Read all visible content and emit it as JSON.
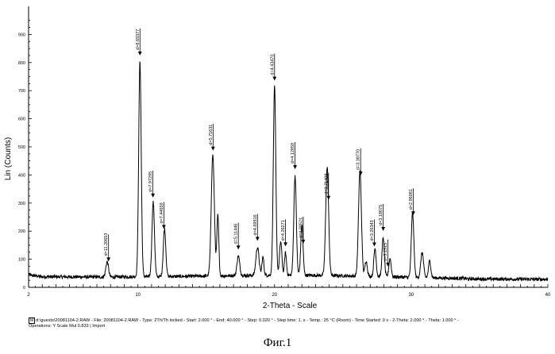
{
  "chart_data": {
    "type": "line",
    "xlabel": "2-Theta - Scale",
    "ylabel": "Lin (Counts)",
    "xlim": [
      2,
      40
    ],
    "ylim": [
      0,
      1000
    ],
    "xticks": [
      2,
      10,
      20,
      30,
      40
    ],
    "yticks": [
      0,
      100,
      200,
      300,
      400,
      500,
      600,
      700,
      800,
      900
    ],
    "grid": false,
    "baseline": 38,
    "peaks": [
      {
        "x": 7.75,
        "y": 55,
        "w": 0.14
      },
      {
        "x": 10.15,
        "y": 765,
        "w": 0.13
      },
      {
        "x": 11.12,
        "y": 265,
        "w": 0.13
      },
      {
        "x": 11.95,
        "y": 170,
        "w": 0.13
      },
      {
        "x": 15.48,
        "y": 430,
        "w": 0.16
      },
      {
        "x": 15.85,
        "y": 215,
        "w": 0.1
      },
      {
        "x": 17.35,
        "y": 70,
        "w": 0.14
      },
      {
        "x": 18.75,
        "y": 100,
        "w": 0.16
      },
      {
        "x": 19.15,
        "y": 65,
        "w": 0.1
      },
      {
        "x": 20.0,
        "y": 670,
        "w": 0.13
      },
      {
        "x": 20.45,
        "y": 120,
        "w": 0.12
      },
      {
        "x": 20.8,
        "y": 80,
        "w": 0.1
      },
      {
        "x": 21.5,
        "y": 355,
        "w": 0.13
      },
      {
        "x": 22.0,
        "y": 180,
        "w": 0.12
      },
      {
        "x": 23.85,
        "y": 385,
        "w": 0.15
      },
      {
        "x": 26.25,
        "y": 375,
        "w": 0.15
      },
      {
        "x": 26.7,
        "y": 55,
        "w": 0.12
      },
      {
        "x": 27.35,
        "y": 100,
        "w": 0.12
      },
      {
        "x": 27.95,
        "y": 140,
        "w": 0.12
      },
      {
        "x": 28.45,
        "y": 65,
        "w": 0.12
      },
      {
        "x": 30.1,
        "y": 230,
        "w": 0.13
      },
      {
        "x": 30.8,
        "y": 90,
        "w": 0.14
      },
      {
        "x": 31.35,
        "y": 60,
        "w": 0.12
      }
    ],
    "annotations": [
      {
        "label": "d=11.20653",
        "x": 7.85
      },
      {
        "label": "d=8.69377",
        "x": 10.15
      },
      {
        "label": "d=7.97295",
        "x": 11.1
      },
      {
        "label": "d=7.44659",
        "x": 11.9
      },
      {
        "label": "d=5.71631",
        "x": 15.5
      },
      {
        "label": "d=5.11446",
        "x": 17.35
      },
      {
        "label": "d=4.69916",
        "x": 18.75
      },
      {
        "label": "d=4.43470",
        "x": 20.0
      },
      {
        "label": "d=4.26271",
        "x": 20.8
      },
      {
        "label": "d=4.12850",
        "x": 21.5
      },
      {
        "label": "d=4.00521",
        "x": 22.1
      },
      {
        "label": "d=3.71409",
        "x": 23.95
      },
      {
        "label": "d=3.38770",
        "x": 26.3
      },
      {
        "label": "d=3.26343",
        "x": 27.3
      },
      {
        "label": "d=3.18675",
        "x": 27.95
      },
      {
        "label": "d=3.1515",
        "x": 28.3
      },
      {
        "label": "d=2.96081",
        "x": 30.15
      }
    ]
  },
  "footer": {
    "file_icon": "M",
    "line1": "d:\\guests\\20081104-2.RAW - File: 20081104-2.RAW - Type: 2Th/Th locked - Start: 2.000 ° - End: 40.000 ° - Step: 0.020 ° - Step time: 1. s - Temp.: 25 °C (Room) - Time Started: 0 s - 2-Theta: 2.000 ° - Theta: 1.000 ° -",
    "line2": "Operations: Y Scale Mul 0.833 | Import"
  },
  "caption": "Фиг.1"
}
